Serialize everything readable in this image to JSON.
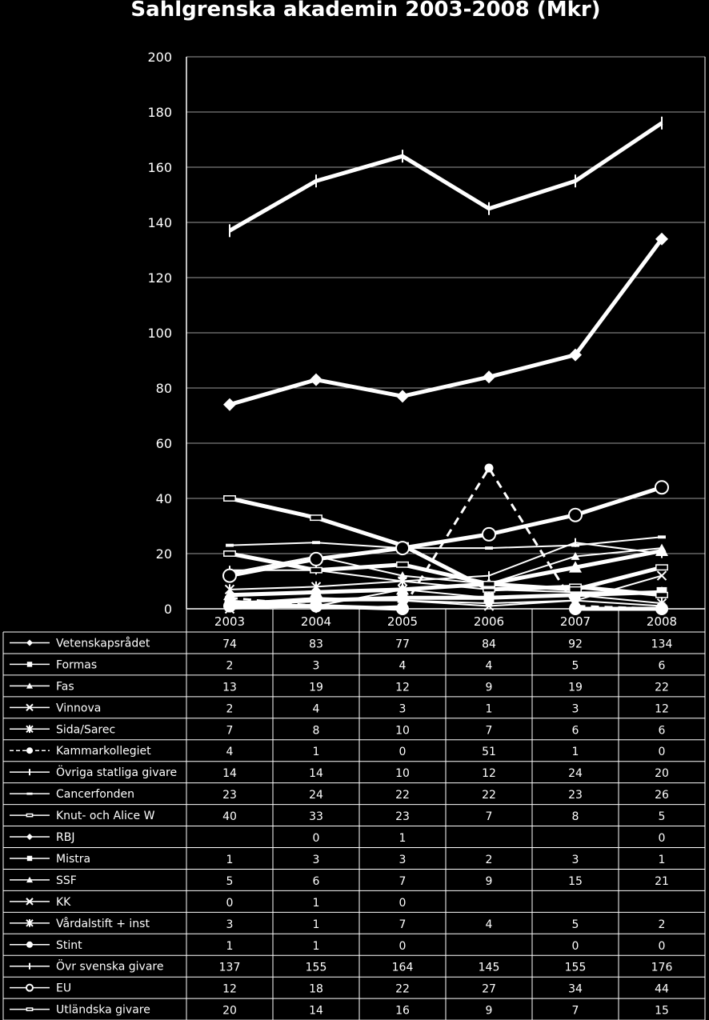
{
  "chart_data": {
    "type": "line",
    "title": "Sahlgrenska akademin 2003-2008 (Mkr)",
    "categories": [
      "2003",
      "2004",
      "2005",
      "2006",
      "2007",
      "2008"
    ],
    "ylim": [
      0,
      200
    ],
    "yticks": [
      0,
      20,
      40,
      60,
      80,
      100,
      120,
      140,
      160,
      180,
      200
    ],
    "grid": true,
    "legend": "data-table-below",
    "series": [
      {
        "name": "Vetenskapsrådet",
        "values": [
          74,
          83,
          77,
          84,
          92,
          134
        ],
        "marker": "diamond",
        "dash": false,
        "width": 5
      },
      {
        "name": "Formas",
        "values": [
          2,
          3,
          4,
          4,
          5,
          6
        ],
        "marker": "square",
        "dash": false,
        "width": 5
      },
      {
        "name": "Fas",
        "values": [
          13,
          19,
          12,
          9,
          19,
          22
        ],
        "marker": "triangle",
        "dash": false,
        "width": 2
      },
      {
        "name": "Vinnova",
        "values": [
          2,
          4,
          3,
          1,
          3,
          12
        ],
        "marker": "x",
        "dash": false,
        "width": 2
      },
      {
        "name": "Sida/Sarec",
        "values": [
          7,
          8,
          10,
          7,
          6,
          6
        ],
        "marker": "star",
        "dash": false,
        "width": 2
      },
      {
        "name": "Kammarkollegiet",
        "values": [
          4,
          1,
          0,
          51,
          1,
          0
        ],
        "marker": "circle",
        "dash": true,
        "width": 3
      },
      {
        "name": "Övriga statliga givare",
        "values": [
          14,
          14,
          10,
          12,
          24,
          20
        ],
        "marker": "plus",
        "dash": false,
        "width": 2
      },
      {
        "name": "Cancerfonden",
        "values": [
          23,
          24,
          22,
          22,
          23,
          26
        ],
        "marker": "smallrect",
        "dash": false,
        "width": 2
      },
      {
        "name": "Knut- och Alice W",
        "values": [
          40,
          33,
          23,
          7,
          8,
          5
        ],
        "marker": "dash",
        "dash": false,
        "width": 5
      },
      {
        "name": "RBJ",
        "values": [
          null,
          0,
          1,
          null,
          null,
          0
        ],
        "marker": "diamond",
        "dash": false,
        "width": 2
      },
      {
        "name": "Mistra",
        "values": [
          1,
          3,
          3,
          2,
          3,
          1
        ],
        "marker": "square",
        "dash": false,
        "width": 2
      },
      {
        "name": "SSF",
        "values": [
          5,
          6,
          7,
          9,
          15,
          21
        ],
        "marker": "triangle",
        "dash": false,
        "width": 5
      },
      {
        "name": "KK",
        "values": [
          0,
          1,
          0,
          null,
          null,
          null
        ],
        "marker": "x",
        "dash": false,
        "width": 2
      },
      {
        "name": "Vårdalstift + inst",
        "values": [
          3,
          1,
          7,
          4,
          5,
          2
        ],
        "marker": "star",
        "dash": false,
        "width": 2
      },
      {
        "name": "Stint",
        "values": [
          1,
          1,
          0,
          null,
          0,
          0
        ],
        "marker": "circle",
        "dash": false,
        "width": 5
      },
      {
        "name": "Övr svenska givare",
        "values": [
          137,
          155,
          164,
          145,
          155,
          176
        ],
        "marker": "plus",
        "dash": false,
        "width": 5
      },
      {
        "name": "EU",
        "values": [
          12,
          18,
          22,
          27,
          34,
          44
        ],
        "marker": "opencircle",
        "dash": false,
        "width": 5
      },
      {
        "name": "Utländska givare",
        "values": [
          20,
          14,
          16,
          9,
          7,
          15
        ],
        "marker": "dash",
        "dash": false,
        "width": 5
      }
    ]
  }
}
